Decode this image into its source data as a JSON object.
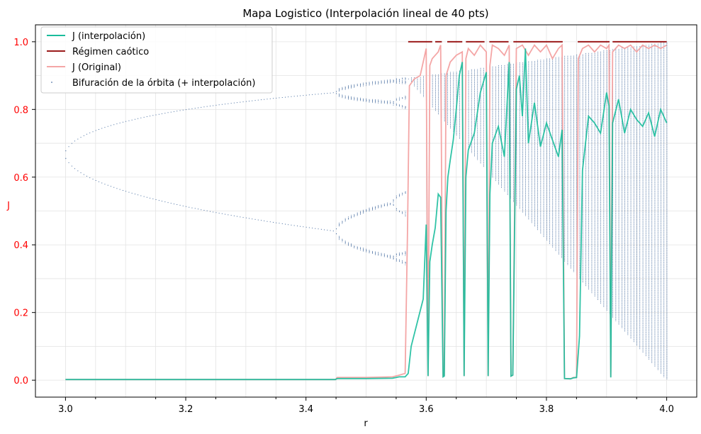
{
  "chart_data": {
    "type": "line",
    "title": "Mapa Logistico (Interpolación lineal de 40 pts)",
    "xlabel": "r",
    "ylabel": "J",
    "xlim": [
      2.95,
      4.05
    ],
    "ylim": [
      -0.05,
      1.05
    ],
    "xticks": [
      "3.0",
      "3.2",
      "3.4",
      "3.6",
      "3.8",
      "4.0"
    ],
    "yticks": [
      "0.0",
      "0.2",
      "0.4",
      "0.6",
      "0.8",
      "1.0"
    ],
    "grid": true,
    "legend_position": "top-left",
    "colors": {
      "interpolation": "#1abc9c",
      "chaotic": "#9b1b1b",
      "original": "#f4a6a6",
      "bifurcation": "#1f4e8c",
      "ytick_color": "#ff0000"
    },
    "series": [
      {
        "name": "J (interpolación)",
        "x": [
          3.0,
          3.1,
          3.2,
          3.3,
          3.4,
          3.449,
          3.452,
          3.5,
          3.544,
          3.555,
          3.565,
          3.57,
          3.575,
          3.585,
          3.595,
          3.6,
          3.603,
          3.606,
          3.61,
          3.615,
          3.62,
          3.624,
          3.628,
          3.63,
          3.633,
          3.636,
          3.64,
          3.645,
          3.65,
          3.655,
          3.66,
          3.663,
          3.666,
          3.67,
          3.68,
          3.69,
          3.7,
          3.703,
          3.706,
          3.71,
          3.72,
          3.73,
          3.738,
          3.741,
          3.744,
          3.75,
          3.755,
          3.76,
          3.765,
          3.77,
          3.78,
          3.79,
          3.8,
          3.81,
          3.82,
          3.826,
          3.83,
          3.84,
          3.845,
          3.85,
          3.855,
          3.86,
          3.87,
          3.88,
          3.89,
          3.9,
          3.904,
          3.907,
          3.91,
          3.92,
          3.93,
          3.94,
          3.95,
          3.96,
          3.97,
          3.98,
          3.99,
          4.0
        ],
        "y": [
          0.002,
          0.002,
          0.002,
          0.002,
          0.002,
          0.002,
          0.005,
          0.005,
          0.006,
          0.01,
          0.01,
          0.02,
          0.1,
          0.17,
          0.24,
          0.46,
          0.012,
          0.35,
          0.4,
          0.45,
          0.55,
          0.54,
          0.01,
          0.012,
          0.5,
          0.6,
          0.65,
          0.71,
          0.8,
          0.9,
          0.94,
          0.012,
          0.6,
          0.68,
          0.73,
          0.85,
          0.91,
          0.012,
          0.55,
          0.7,
          0.75,
          0.66,
          0.94,
          0.012,
          0.015,
          0.86,
          0.9,
          0.78,
          0.98,
          0.7,
          0.82,
          0.69,
          0.76,
          0.71,
          0.66,
          0.74,
          0.005,
          0.004,
          0.007,
          0.008,
          0.13,
          0.62,
          0.78,
          0.76,
          0.73,
          0.85,
          0.81,
          0.008,
          0.76,
          0.83,
          0.73,
          0.8,
          0.77,
          0.75,
          0.79,
          0.72,
          0.8,
          0.76
        ]
      },
      {
        "name": "Régimen caótico",
        "segments": [
          [
            3.57,
            3.61
          ],
          [
            3.615,
            3.626
          ],
          [
            3.635,
            3.66
          ],
          [
            3.666,
            3.697
          ],
          [
            3.705,
            3.737
          ],
          [
            3.745,
            3.827
          ],
          [
            3.852,
            3.905
          ],
          [
            3.91,
            4.0
          ]
        ],
        "y": 1.0
      },
      {
        "name": "J (Original)",
        "x": [
          3.0,
          3.1,
          3.2,
          3.3,
          3.4,
          3.449,
          3.452,
          3.5,
          3.544,
          3.555,
          3.565,
          3.569,
          3.572,
          3.58,
          3.59,
          3.6,
          3.603,
          3.606,
          3.61,
          3.62,
          3.624,
          3.628,
          3.63,
          3.633,
          3.64,
          3.65,
          3.66,
          3.663,
          3.666,
          3.67,
          3.68,
          3.69,
          3.7,
          3.703,
          3.706,
          3.71,
          3.72,
          3.73,
          3.738,
          3.741,
          3.744,
          3.75,
          3.76,
          3.77,
          3.78,
          3.79,
          3.8,
          3.81,
          3.82,
          3.826,
          3.83,
          3.84,
          3.845,
          3.85,
          3.853,
          3.86,
          3.87,
          3.88,
          3.89,
          3.9,
          3.904,
          3.907,
          3.91,
          3.92,
          3.93,
          3.94,
          3.95,
          3.96,
          3.97,
          3.98,
          3.99,
          4.0
        ],
        "y": [
          0.002,
          0.002,
          0.002,
          0.002,
          0.002,
          0.002,
          0.008,
          0.008,
          0.01,
          0.015,
          0.02,
          0.45,
          0.87,
          0.89,
          0.9,
          0.98,
          0.012,
          0.93,
          0.95,
          0.97,
          0.99,
          0.012,
          0.015,
          0.9,
          0.94,
          0.96,
          0.97,
          0.012,
          0.95,
          0.98,
          0.96,
          0.99,
          0.97,
          0.012,
          0.93,
          0.99,
          0.98,
          0.96,
          0.99,
          0.012,
          0.015,
          0.98,
          0.99,
          0.96,
          0.99,
          0.97,
          0.99,
          0.95,
          0.98,
          0.99,
          0.005,
          0.004,
          0.008,
          0.008,
          0.95,
          0.98,
          0.99,
          0.97,
          0.99,
          0.98,
          0.99,
          0.01,
          0.97,
          0.99,
          0.98,
          0.99,
          0.97,
          0.99,
          0.98,
          0.99,
          0.98,
          0.99
        ]
      },
      {
        "name": "Bifuración de la órbita (+ interpolación)",
        "kind": "bifurcation-dots"
      }
    ]
  }
}
